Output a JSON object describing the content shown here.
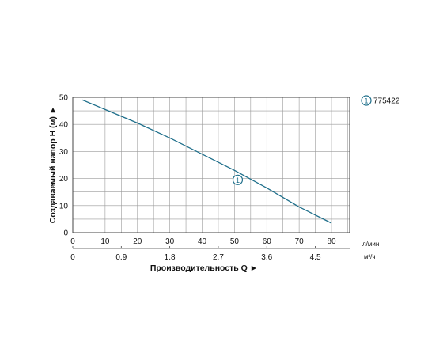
{
  "chart_data": {
    "type": "line",
    "title": "",
    "ylabel": "Создаваемый напор H (м) ►",
    "xlabel": "Производительность Q ►",
    "x_unit_primary": "л/мин",
    "x_unit_secondary": "м³/ч",
    "xlim": [
      0,
      80
    ],
    "ylim": [
      0,
      50
    ],
    "x_ticks_primary": [
      "0",
      "10",
      "20",
      "30",
      "40",
      "50",
      "60",
      "70",
      "80"
    ],
    "x_ticks_primary_values": [
      0,
      10,
      20,
      30,
      40,
      50,
      60,
      70,
      80
    ],
    "x_ticks_secondary": [
      "0",
      "0.9",
      "1.8",
      "2.7",
      "3.6",
      "4.5"
    ],
    "x_ticks_secondary_values": [
      0,
      0.9,
      1.8,
      2.7,
      3.6,
      4.5
    ],
    "y_ticks": [
      "0",
      "10",
      "20",
      "30",
      "40",
      "50"
    ],
    "y_ticks_values": [
      0,
      10,
      20,
      30,
      40,
      50
    ],
    "grid": true,
    "legend_position": "top-right",
    "series": [
      {
        "name": "775422",
        "marker_label": "1",
        "color": "#1f6f8b",
        "x": [
          3,
          10,
          20,
          30,
          40,
          50,
          60,
          70,
          80
        ],
        "y": [
          49,
          45.5,
          40.5,
          35,
          29,
          23,
          16.5,
          9.5,
          3.5
        ],
        "marker_at": {
          "x": 51,
          "y": 19.5
        }
      }
    ]
  }
}
